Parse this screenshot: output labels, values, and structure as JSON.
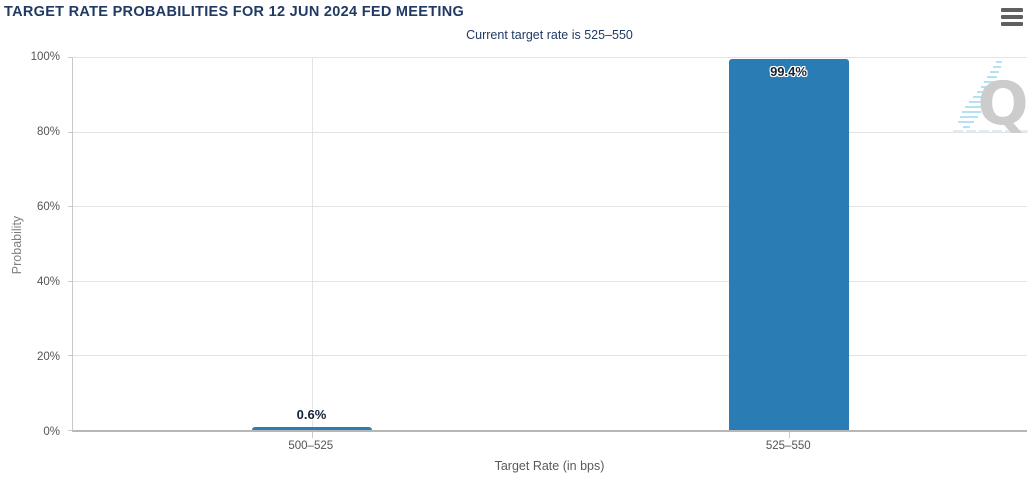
{
  "header": {
    "title": "TARGET RATE PROBABILITIES FOR 12 JUN 2024 FED MEETING",
    "subtitle": "Current target rate is 525–550"
  },
  "chart_data": {
    "type": "bar",
    "title": "TARGET RATE PROBABILITIES FOR 12 JUN 2024 FED MEETING",
    "subtitle": "Current target rate is 525–550",
    "categories": [
      "500–525",
      "525–550"
    ],
    "values": [
      0.6,
      99.4
    ],
    "value_labels": [
      "0.6%",
      "99.4%"
    ],
    "xlabel": "Target Rate (in bps)",
    "ylabel": "Probability",
    "ylim": [
      0,
      100
    ],
    "ytick_labels": [
      "0%",
      "20%",
      "40%",
      "60%",
      "80%",
      "100%"
    ],
    "grid": true,
    "legend": "none",
    "bar_color": "#2A7CB5"
  },
  "watermark": {
    "letter": "Q"
  },
  "colors": {
    "title_text": "#203A64",
    "bar": "#2A7CB5",
    "axis_text": "#545454",
    "gridline": "#E3E3E3"
  }
}
